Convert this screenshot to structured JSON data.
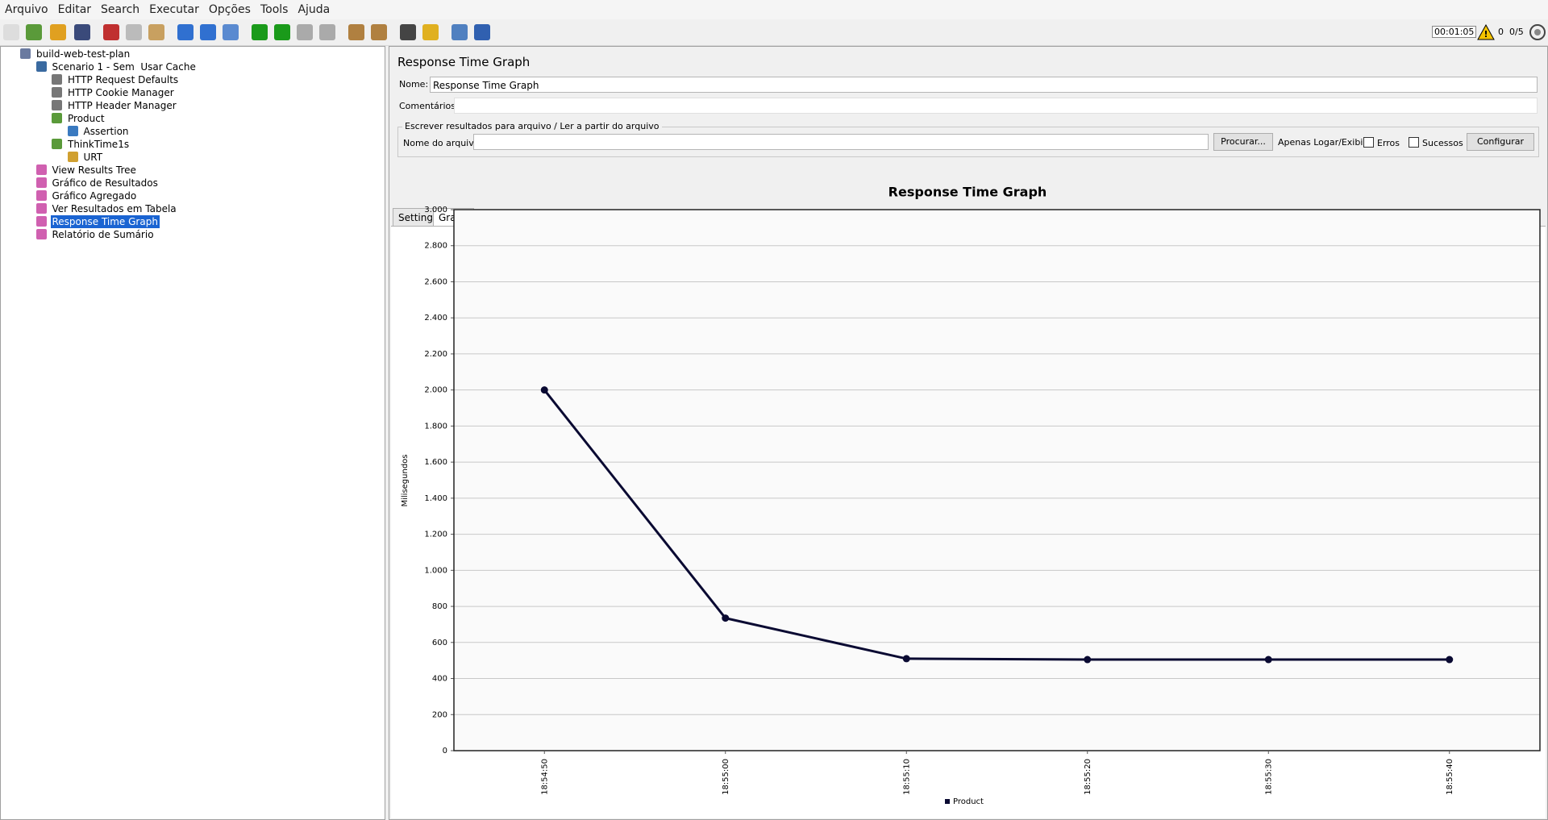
{
  "menu": [
    "Arquivo",
    "Editar",
    "Search",
    "Executar",
    "Opções",
    "Tools",
    "Ajuda"
  ],
  "status": {
    "timer": "00:01:05",
    "warnings": "0",
    "threads": "0/5"
  },
  "tree": [
    "build-web-test-plan",
    "Scenario 1 - Sem  Usar Cache",
    "HTTP Request Defaults",
    "HTTP Cookie Manager",
    "HTTP Header Manager",
    "Product",
    "Assertion",
    "ThinkTime1s",
    "URT",
    "View Results Tree",
    "Gráfico de Resultados",
    "Gráfico Agregado",
    "Ver Resultados em Tabela",
    "Response Time Graph",
    "Relatório de Sumário"
  ],
  "panel": {
    "title": "Response Time Graph",
    "name_label": "Nome:",
    "name_value": "Response Time Graph",
    "comments_label": "Comentários:",
    "file_legend": "Escrever resultados para arquivo / Ler a partir do arquivo",
    "file_label": "Nome do arquivo",
    "browse": "Procurar...",
    "log_label": "Apenas Logar/Exibir",
    "errors": "Erros",
    "success": "Sucessos",
    "configure": "Configurar"
  },
  "tabs": [
    "Settings",
    "Graph"
  ],
  "chart_data": {
    "type": "line",
    "title": "Response Time Graph",
    "y_label": "Milisegundos",
    "categories": [
      "18:54:50",
      "18:55:00",
      "18:55:10",
      "18:55:20",
      "18:55:30",
      "18:55:40"
    ],
    "series": [
      {
        "name": "Product",
        "color": "#0a0a32",
        "values": [
          2000,
          735,
          510,
          505,
          505,
          505
        ]
      }
    ],
    "ylim": [
      0,
      3000
    ],
    "yticks": [
      0,
      200,
      400,
      600,
      800,
      {
        "value": 1000,
        "label": "1.000"
      },
      {
        "value": 1200,
        "label": "1.200"
      },
      {
        "value": 1400,
        "label": "1.400"
      },
      {
        "value": 1600,
        "label": "1.600"
      },
      {
        "value": 1800,
        "label": "1.800"
      },
      {
        "value": 2000,
        "label": "2.000"
      },
      {
        "value": 2200,
        "label": "2.200"
      },
      {
        "value": 2400,
        "label": "2.400"
      },
      {
        "value": 2600,
        "label": "2.600"
      },
      {
        "value": 2800,
        "label": "2.800"
      },
      {
        "value": 3000,
        "label": "3.000"
      }
    ],
    "grid": true
  }
}
